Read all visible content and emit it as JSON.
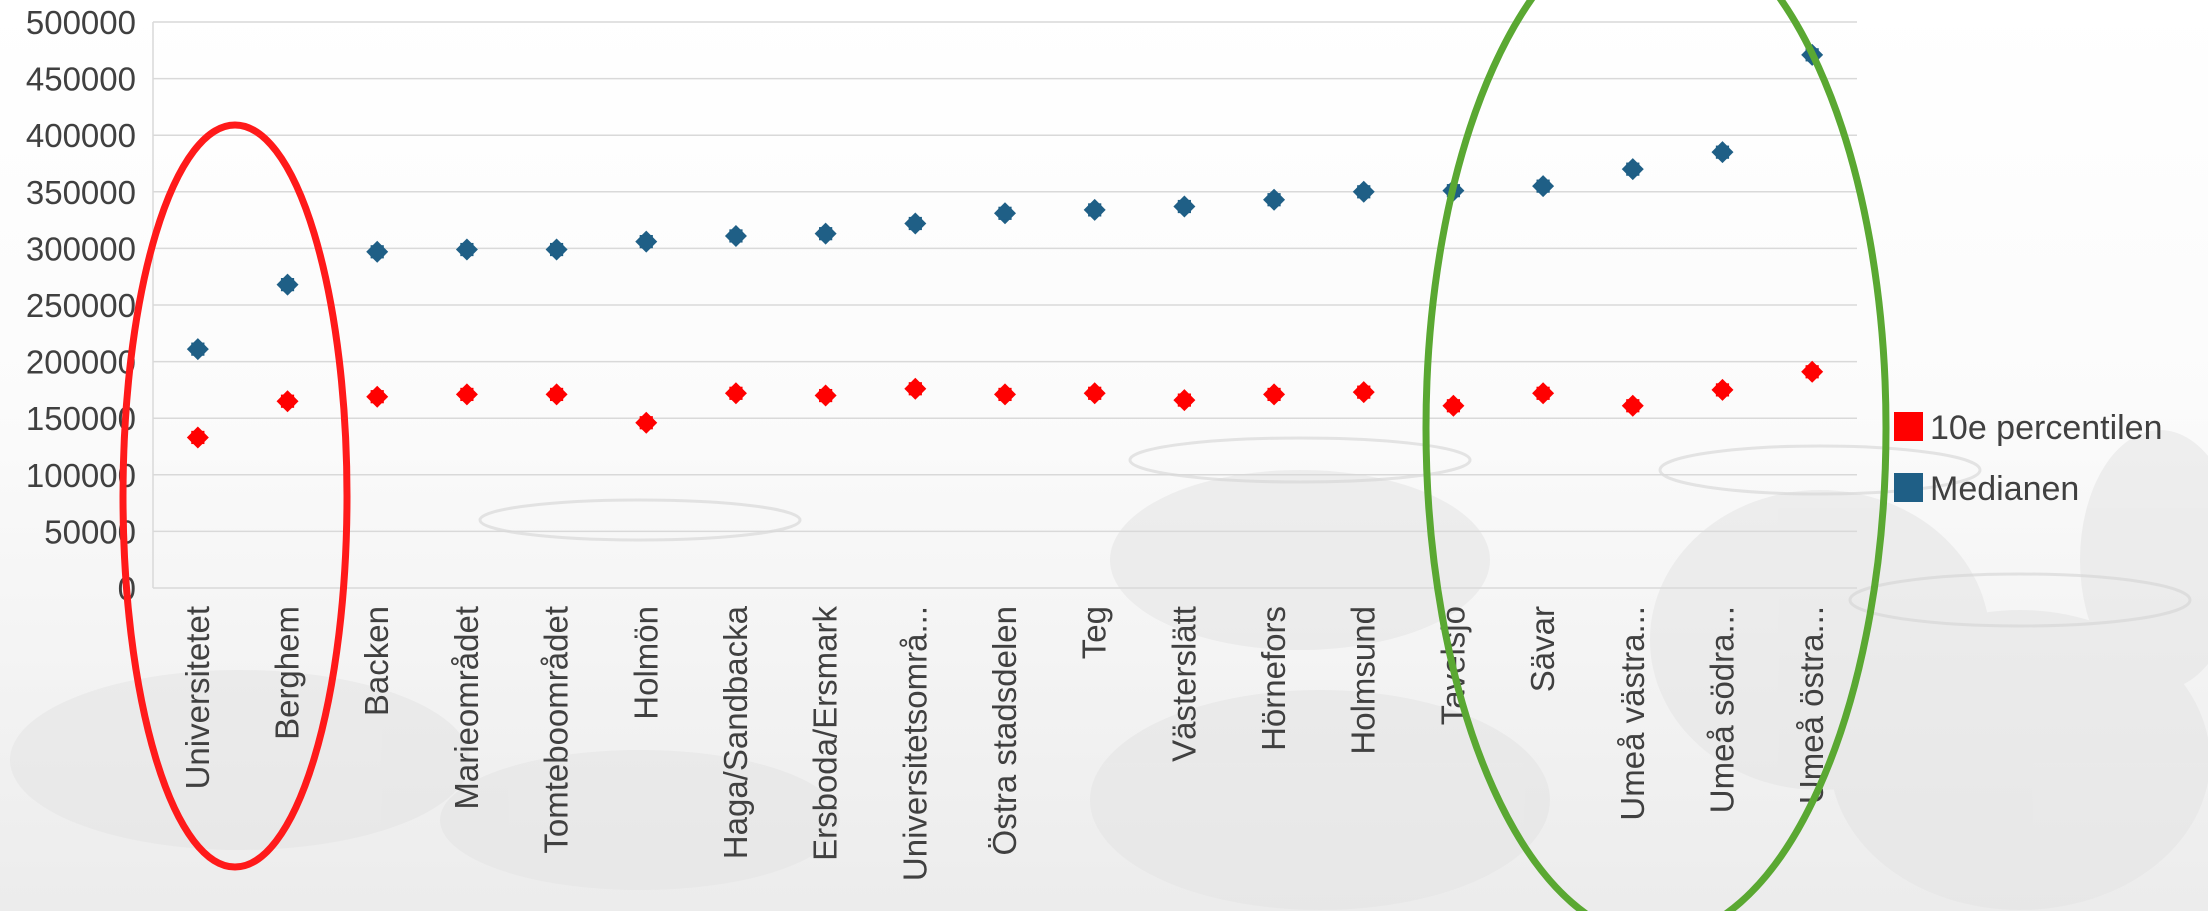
{
  "chart_data": {
    "type": "scatter",
    "categories": [
      "Universitetet",
      "Berghem",
      "Backen",
      "Marieområdet",
      "Tomteboområdet",
      "Holmön",
      "Haga/Sandbacka",
      "Ersboda/Ersmark",
      "Universitetsområ...",
      "Östra stadsdelen",
      "Teg",
      "Västerslätt",
      "Hörnefors",
      "Holmsund",
      "Tavelsjö",
      "Sävar",
      "Umeå västra...",
      "Umeå södra...",
      "Umeå östra..."
    ],
    "series": [
      {
        "name": "10e percentilen",
        "color": "#ff0000",
        "marker": "diamond",
        "values": [
          133000,
          165000,
          169000,
          171000,
          171000,
          146000,
          172000,
          170000,
          176000,
          171000,
          172000,
          166000,
          171000,
          173000,
          161000,
          172000,
          161000,
          175000,
          191000
        ]
      },
      {
        "name": "Medianen",
        "color": "#1f5f86",
        "marker": "diamond",
        "values": [
          211000,
          268000,
          297000,
          299000,
          299000,
          306000,
          311000,
          313000,
          322000,
          331000,
          334000,
          337000,
          343000,
          350000,
          351000,
          355000,
          370000,
          385000,
          471000
        ]
      }
    ],
    "yticks": [
      "500000",
      "450000",
      "400000",
      "350000",
      "300000",
      "250000",
      "200000",
      "150000",
      "100000",
      "50000",
      "0"
    ],
    "ylim": [
      0,
      500000
    ],
    "grid": true,
    "legend_position": "right",
    "annotations": [
      {
        "shape": "ellipse",
        "color": "#ff1a1a",
        "around": [
          "Universitetet",
          "Berghem"
        ]
      },
      {
        "shape": "ellipse",
        "color": "#5aa832",
        "around": [
          "Sävar",
          "Umeå västra...",
          "Umeå södra...",
          "Umeå östra..."
        ]
      }
    ]
  }
}
